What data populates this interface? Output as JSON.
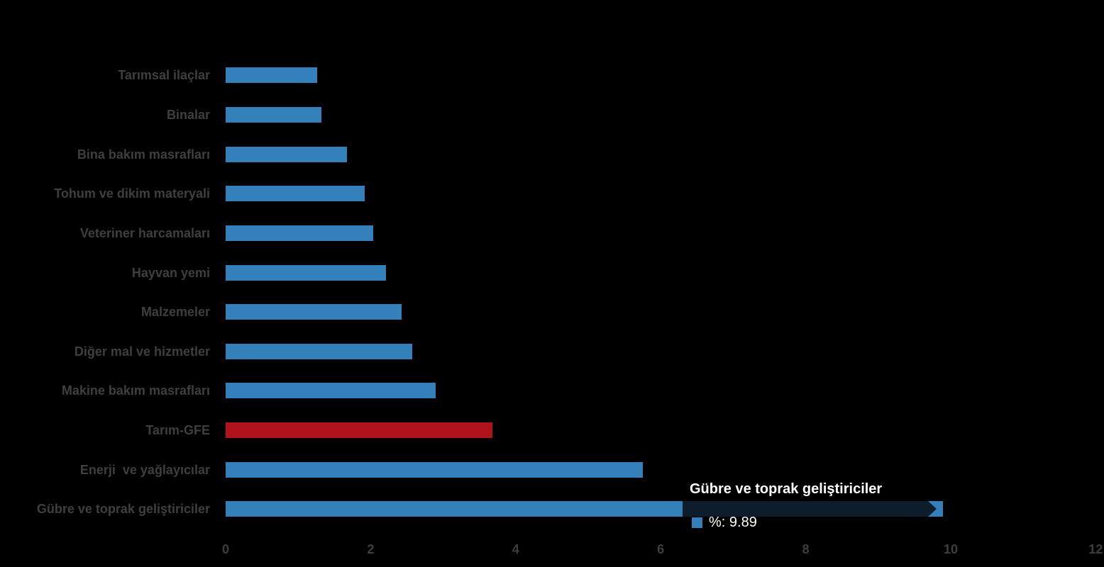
{
  "background": "#000000",
  "colors": {
    "bar_blue": "#3380bb",
    "bar_red": "#b01319",
    "category_label_gray": "#3f3f3f",
    "axis_tick_gray": "#3e3e3e",
    "tooltip_overlay_navy": "#0e1d2b",
    "tooltip_text_white": "#ffffff"
  },
  "chart_data": {
    "type": "bar",
    "orientation": "horizontal",
    "title": "",
    "xlabel": "",
    "ylabel": "",
    "xlim": [
      0,
      12
    ],
    "x_ticks": [
      "0",
      "2",
      "4",
      "6",
      "8",
      "10",
      "12"
    ],
    "grid": false,
    "legend_position": "none",
    "unit": "%",
    "categories": [
      "Tarımsal ilaçlar",
      "Binalar",
      "Bina bakım masrafları",
      "Tohum ve dikim materyali",
      "Veteriner harcamaları",
      "Hayvan yemi",
      "Malzemeler",
      "Diğer mal ve hizmetler",
      "Makine bakım masrafları",
      "Tarım-GFE",
      "Enerji  ve yağlayıcılar",
      "Gübre ve toprak geliştiriciler"
    ],
    "values": [
      1.26,
      1.32,
      1.67,
      1.92,
      2.04,
      2.21,
      2.43,
      2.57,
      2.9,
      3.68,
      5.75,
      9.89
    ],
    "highlight_index": 9,
    "hovered_index": 11
  },
  "tooltip": {
    "title": "Gübre ve toprak geliştiriciler",
    "value_label": "%: 9.89"
  }
}
